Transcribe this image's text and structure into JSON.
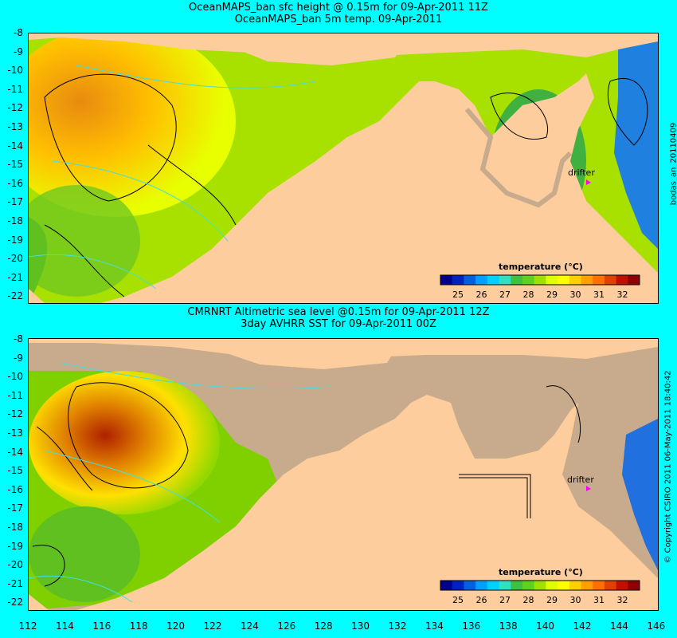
{
  "top": {
    "title1": "OceanMAPS_ban sfc height @ 0.15m for 09-Apr-2011 11Z",
    "title2": "OceanMAPS_ban 5m temp. 09-Apr-2011",
    "side_text": "bodas_an_20110409",
    "drifter_label": "drifter",
    "colorbar_title": "temperature (°C)"
  },
  "bottom": {
    "title1": "CMRNRT Altimetric sea level  @0.15m  for 09-Apr-2011 12Z",
    "title2": "3day AVHRR SST for 09-Apr-2011 00Z",
    "side_text": "© Copyright CSIRO 2011  06-May-2011 18:40:42",
    "drifter_label": "drifter",
    "colorbar_title": "temperature (°C)"
  },
  "lat_ticks": [
    "-8",
    "-9",
    "-10",
    "-11",
    "-12",
    "-13",
    "-14",
    "-15",
    "-16",
    "-17",
    "-18",
    "-19",
    "-20",
    "-21",
    "-22"
  ],
  "lon_ticks": [
    "112",
    "114",
    "116",
    "118",
    "120",
    "122",
    "124",
    "126",
    "128",
    "130",
    "132",
    "134",
    "136",
    "138",
    "140",
    "142",
    "144",
    "146"
  ],
  "colorbar": {
    "labels": [
      "25",
      "26",
      "27",
      "28",
      "29",
      "30",
      "31",
      "32"
    ],
    "colors": [
      "#00008b",
      "#0020c0",
      "#0060e0",
      "#00a0ff",
      "#00d0ff",
      "#30e0c0",
      "#40c040",
      "#60d020",
      "#a0e000",
      "#e0ff00",
      "#ffff00",
      "#ffd000",
      "#ffa000",
      "#ff7000",
      "#e04000",
      "#c01000",
      "#900000"
    ]
  },
  "colors": {
    "background": "#00ffff",
    "land": "#fdcd9d",
    "nodata": "#c8aa8c",
    "drifter": "#ff00ff"
  }
}
